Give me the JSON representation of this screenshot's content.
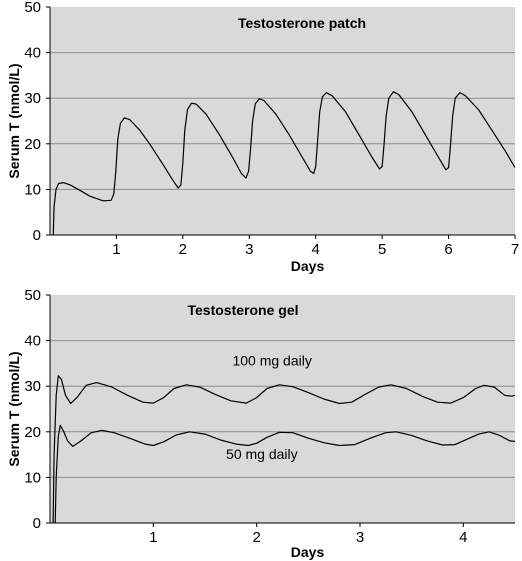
{
  "chart_data": [
    {
      "type": "line",
      "title": "Testosterone patch",
      "xlabel": "Days",
      "ylabel": "Serum T (nmol/L)",
      "xlim": [
        0,
        7
      ],
      "ylim": [
        0,
        50
      ],
      "xticks": [
        1,
        2,
        3,
        4,
        5,
        6,
        7
      ],
      "yticks": [
        0,
        10,
        20,
        30,
        40,
        50
      ],
      "grid": "horizontal",
      "background": "#d9d9d9",
      "series": [
        {
          "color": "#000000",
          "points": [
            [
              0.05,
              0
            ],
            [
              0.06,
              6
            ],
            [
              0.09,
              10
            ],
            [
              0.13,
              11.3
            ],
            [
              0.2,
              11.5
            ],
            [
              0.3,
              11.0
            ],
            [
              0.45,
              9.8
            ],
            [
              0.6,
              8.5
            ],
            [
              0.8,
              7.5
            ],
            [
              0.92,
              7.6
            ],
            [
              0.96,
              9.0
            ],
            [
              0.99,
              14
            ],
            [
              1.02,
              21
            ],
            [
              1.06,
              24.5
            ],
            [
              1.12,
              25.7
            ],
            [
              1.2,
              25.3
            ],
            [
              1.35,
              23.0
            ],
            [
              1.5,
              20.0
            ],
            [
              1.7,
              15.5
            ],
            [
              1.85,
              12.0
            ],
            [
              1.93,
              10.3
            ],
            [
              1.97,
              11.0
            ],
            [
              2.0,
              16
            ],
            [
              2.03,
              23
            ],
            [
              2.07,
              27.5
            ],
            [
              2.13,
              28.9
            ],
            [
              2.2,
              28.7
            ],
            [
              2.35,
              26.5
            ],
            [
              2.55,
              22.0
            ],
            [
              2.75,
              17.0
            ],
            [
              2.88,
              13.5
            ],
            [
              2.95,
              12.5
            ],
            [
              2.99,
              14.0
            ],
            [
              3.02,
              19
            ],
            [
              3.05,
              25
            ],
            [
              3.09,
              28.8
            ],
            [
              3.15,
              29.9
            ],
            [
              3.22,
              29.5
            ],
            [
              3.4,
              26.5
            ],
            [
              3.6,
              22.0
            ],
            [
              3.8,
              17.0
            ],
            [
              3.92,
              14.0
            ],
            [
              3.97,
              13.5
            ],
            [
              4.0,
              15.0
            ],
            [
              4.03,
              21
            ],
            [
              4.06,
              27
            ],
            [
              4.1,
              30.3
            ],
            [
              4.16,
              31.2
            ],
            [
              4.25,
              30.5
            ],
            [
              4.45,
              27.0
            ],
            [
              4.65,
              22.0
            ],
            [
              4.85,
              17.0
            ],
            [
              4.96,
              14.5
            ],
            [
              5.0,
              15.0
            ],
            [
              5.03,
              20
            ],
            [
              5.06,
              26
            ],
            [
              5.1,
              30
            ],
            [
              5.17,
              31.4
            ],
            [
              5.25,
              30.8
            ],
            [
              5.45,
              27.0
            ],
            [
              5.65,
              22.0
            ],
            [
              5.85,
              17.0
            ],
            [
              5.96,
              14.3
            ],
            [
              6.0,
              14.8
            ],
            [
              6.03,
              20
            ],
            [
              6.06,
              26
            ],
            [
              6.1,
              30
            ],
            [
              6.17,
              31.2
            ],
            [
              6.25,
              30.6
            ],
            [
              6.45,
              27.5
            ],
            [
              6.65,
              23.0
            ],
            [
              6.85,
              18.5
            ],
            [
              7.0,
              14.8
            ]
          ]
        }
      ]
    },
    {
      "type": "line",
      "title": "Testosterone gel",
      "xlabel": "Days",
      "ylabel": "Serum T (nmol/L)",
      "xlim": [
        0,
        4.5
      ],
      "ylim": [
        0,
        50
      ],
      "xticks": [
        1,
        2,
        3,
        4
      ],
      "yticks": [
        0,
        10,
        20,
        30,
        40,
        50
      ],
      "grid": "horizontal",
      "background": "#d9d9d9",
      "annotations": [
        {
          "text": "100 mg daily",
          "x": 2.15,
          "y": 34.5
        },
        {
          "text": "50 mg daily",
          "x": 2.05,
          "y": 14.0
        }
      ],
      "series": [
        {
          "name": "100 mg daily",
          "color": "#000000",
          "points": [
            [
              0.03,
              0
            ],
            [
              0.04,
              15
            ],
            [
              0.06,
              28
            ],
            [
              0.08,
              32.3
            ],
            [
              0.11,
              31.5
            ],
            [
              0.15,
              28
            ],
            [
              0.2,
              26.2
            ],
            [
              0.26,
              27.5
            ],
            [
              0.35,
              30.2
            ],
            [
              0.45,
              30.8
            ],
            [
              0.6,
              29.8
            ],
            [
              0.75,
              28.0
            ],
            [
              0.9,
              26.5
            ],
            [
              1.0,
              26.3
            ],
            [
              1.1,
              27.5
            ],
            [
              1.2,
              29.5
            ],
            [
              1.32,
              30.3
            ],
            [
              1.45,
              29.8
            ],
            [
              1.6,
              28.2
            ],
            [
              1.75,
              26.8
            ],
            [
              1.9,
              26.3
            ],
            [
              2.0,
              27.5
            ],
            [
              2.1,
              29.5
            ],
            [
              2.22,
              30.3
            ],
            [
              2.35,
              29.9
            ],
            [
              2.5,
              28.6
            ],
            [
              2.65,
              27.2
            ],
            [
              2.8,
              26.2
            ],
            [
              2.92,
              26.5
            ],
            [
              3.05,
              28.2
            ],
            [
              3.18,
              29.8
            ],
            [
              3.3,
              30.3
            ],
            [
              3.45,
              29.5
            ],
            [
              3.6,
              27.8
            ],
            [
              3.75,
              26.5
            ],
            [
              3.88,
              26.3
            ],
            [
              4.0,
              27.5
            ],
            [
              4.12,
              29.5
            ],
            [
              4.2,
              30.2
            ],
            [
              4.3,
              29.8
            ],
            [
              4.4,
              28.0
            ],
            [
              4.47,
              27.8
            ],
            [
              4.5,
              28.0
            ]
          ]
        },
        {
          "name": "50 mg daily",
          "color": "#000000",
          "points": [
            [
              0.05,
              0
            ],
            [
              0.06,
              10
            ],
            [
              0.08,
              19
            ],
            [
              0.1,
              21.4
            ],
            [
              0.13,
              20.2
            ],
            [
              0.17,
              18
            ],
            [
              0.22,
              16.8
            ],
            [
              0.3,
              18.0
            ],
            [
              0.4,
              19.8
            ],
            [
              0.5,
              20.3
            ],
            [
              0.62,
              19.8
            ],
            [
              0.78,
              18.5
            ],
            [
              0.92,
              17.3
            ],
            [
              1.0,
              17.0
            ],
            [
              1.1,
              17.8
            ],
            [
              1.22,
              19.3
            ],
            [
              1.35,
              20.0
            ],
            [
              1.5,
              19.5
            ],
            [
              1.65,
              18.2
            ],
            [
              1.8,
              17.3
            ],
            [
              1.92,
              17.0
            ],
            [
              2.0,
              17.5
            ],
            [
              2.1,
              18.8
            ],
            [
              2.22,
              19.9
            ],
            [
              2.35,
              19.8
            ],
            [
              2.5,
              18.6
            ],
            [
              2.65,
              17.6
            ],
            [
              2.8,
              17.0
            ],
            [
              2.95,
              17.2
            ],
            [
              3.1,
              18.6
            ],
            [
              3.25,
              19.8
            ],
            [
              3.35,
              20.0
            ],
            [
              3.5,
              19.2
            ],
            [
              3.65,
              18.0
            ],
            [
              3.8,
              17.1
            ],
            [
              3.92,
              17.2
            ],
            [
              4.05,
              18.5
            ],
            [
              4.15,
              19.5
            ],
            [
              4.25,
              20.0
            ],
            [
              4.35,
              19.2
            ],
            [
              4.45,
              18.0
            ],
            [
              4.5,
              17.9
            ]
          ]
        }
      ]
    }
  ]
}
